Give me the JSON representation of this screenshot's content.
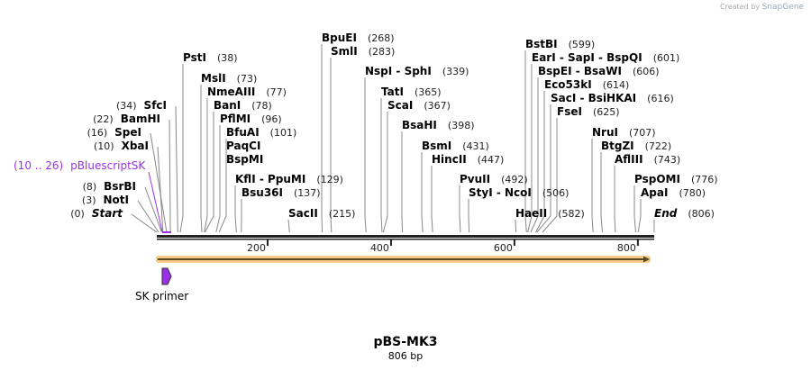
{
  "credit": {
    "prefix": "Created by",
    "brand": "SnapGene"
  },
  "map": {
    "name": "pBS-MK3",
    "length_label": "806 bp",
    "length_bp": 806,
    "ticks": [
      200,
      400,
      600,
      800
    ],
    "backbone_color": "#222222",
    "feature_color": "#f5c26b"
  },
  "primer": {
    "label": "SK primer",
    "start": 10,
    "end": 26,
    "color": "#9b30e8"
  },
  "primer_binding": {
    "label": "pBluescriptSK",
    "range": "(10 .. 26)"
  },
  "sites": [
    {
      "name": "Start",
      "pos": 0,
      "italic": true
    },
    {
      "name": "NotI",
      "pos": 3
    },
    {
      "name": "BsrBI",
      "pos": 8
    },
    {
      "name": "XbaI",
      "pos": 10
    },
    {
      "name": "SpeI",
      "pos": 16
    },
    {
      "name": "BamHI",
      "pos": 22
    },
    {
      "name": "SfcI",
      "pos": 34
    },
    {
      "name": "PstI",
      "pos": 38
    },
    {
      "name": "MslI",
      "pos": 73
    },
    {
      "name": "NmeAIII",
      "pos": 77
    },
    {
      "name": "BanI",
      "pos": 78
    },
    {
      "name": "PflMI",
      "pos": 96
    },
    {
      "name": "BfuAI",
      "pos": 101
    },
    {
      "name": "PaqCI",
      "pos": 101,
      "nopos": true
    },
    {
      "name": "BspMI",
      "pos": 101,
      "nopos": true
    },
    {
      "name": "KflI  -  PpuMI",
      "pos": 129
    },
    {
      "name": "Bsu36I",
      "pos": 137
    },
    {
      "name": "SacII",
      "pos": 215
    },
    {
      "name": "BpuEI",
      "pos": 268
    },
    {
      "name": "SmlI",
      "pos": 283
    },
    {
      "name": "NspI  -  SphI",
      "pos": 339
    },
    {
      "name": "TatI",
      "pos": 365
    },
    {
      "name": "ScaI",
      "pos": 367
    },
    {
      "name": "BsaHI",
      "pos": 398
    },
    {
      "name": "BsmI",
      "pos": 431
    },
    {
      "name": "HincII",
      "pos": 447
    },
    {
      "name": "PvuII",
      "pos": 492
    },
    {
      "name": "StyI  -  NcoI",
      "pos": 506
    },
    {
      "name": "HaeII",
      "pos": 582
    },
    {
      "name": "BstBI",
      "pos": 599
    },
    {
      "name": "EarI  -  SapI  -  BspQI",
      "pos": 601
    },
    {
      "name": "BspEI  -  BsaWI",
      "pos": 606
    },
    {
      "name": "Eco53kI",
      "pos": 614
    },
    {
      "name": "SacI  -  BsiHKAI",
      "pos": 616
    },
    {
      "name": "FseI",
      "pos": 625
    },
    {
      "name": "NruI",
      "pos": 707
    },
    {
      "name": "BtgZI",
      "pos": 722
    },
    {
      "name": "AflIII",
      "pos": 743
    },
    {
      "name": "PspOMI",
      "pos": 776
    },
    {
      "name": "ApaI",
      "pos": 780
    },
    {
      "name": "End",
      "pos": 806,
      "italic": true
    }
  ]
}
